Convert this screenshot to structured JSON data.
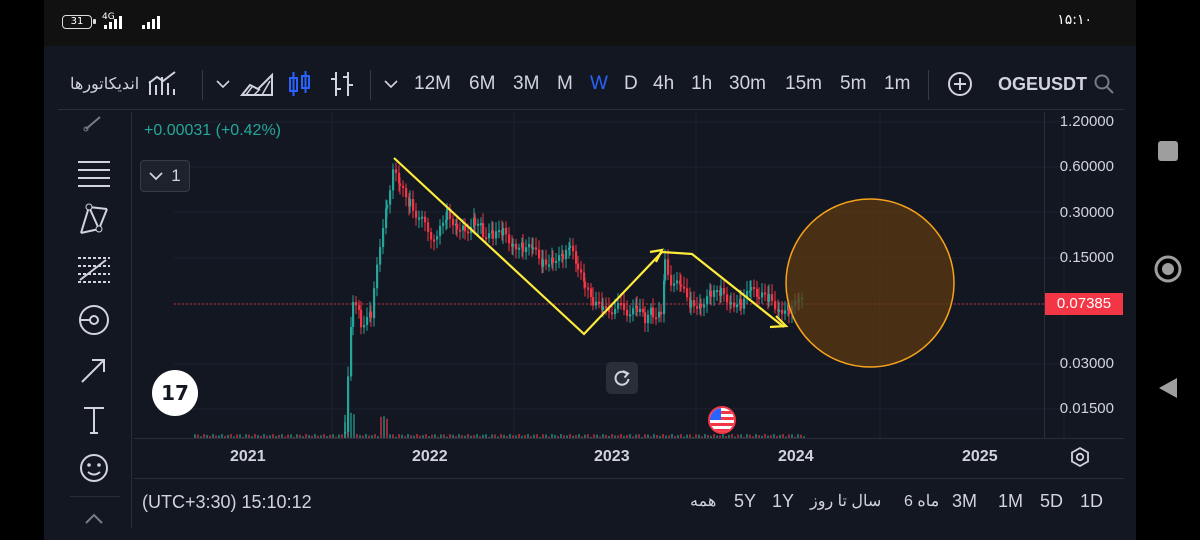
{
  "status_bar": {
    "battery": "31",
    "network": "4G",
    "time": "۱۵:۱۰"
  },
  "toolbar": {
    "indicators_label": "اندیکاتورها",
    "intervals": [
      "12M",
      "6M",
      "3M",
      "M",
      "W",
      "D",
      "4h",
      "1h",
      "30m",
      "15m",
      "5m",
      "1m"
    ],
    "active_interval": "W",
    "symbol": "OGEUSDT"
  },
  "chart": {
    "change_text": "+0.00031 (+0.42%)",
    "interval_count": "1",
    "current_price": "0.07385",
    "price_labels": [
      "1.20000",
      "0.60000",
      "0.30000",
      "0.15000",
      "0.03000",
      "0.01500"
    ],
    "time_labels": [
      "2021",
      "2022",
      "2023",
      "2024",
      "2025"
    ],
    "tv_logo": "17",
    "colors": {
      "up": "#26a69a",
      "down": "#f23645",
      "drawing": "#ffeb3b",
      "circle_fill": "#5c3a12",
      "circle_stroke": "#f7a21b"
    }
  },
  "bottom_bar": {
    "timestamp": "(UTC+3:30) 15:10:12",
    "ranges": [
      "همه",
      "5Y",
      "1Y",
      "سال تا روز",
      "6 ماه",
      "3M",
      "1M",
      "5D",
      "1D"
    ]
  },
  "icons": {
    "left_toolbar": [
      "cursor-icon",
      "trend-lines-icon",
      "pattern-icon",
      "fib-icon",
      "measure-icon",
      "arrow-icon",
      "text-icon",
      "emoji-icon"
    ]
  }
}
